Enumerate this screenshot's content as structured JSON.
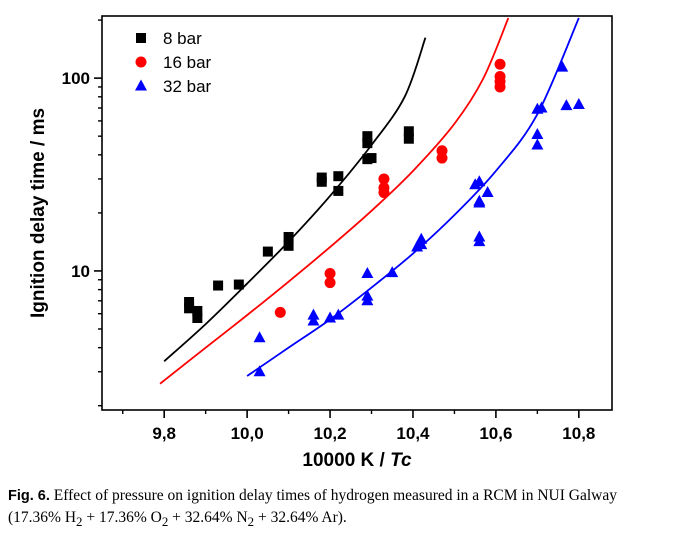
{
  "chart_data": {
    "type": "scatter",
    "xlabel": "10000 K / ",
    "xlabel_italic": "Tc",
    "ylabel": "Ignition delay time / ms",
    "xlim": [
      9.65,
      10.88
    ],
    "ylim": [
      1.9,
      210
    ],
    "y_scale": "log",
    "x_ticks": [
      9.8,
      10.0,
      10.2,
      10.4,
      10.6,
      10.8
    ],
    "x_tick_labels": [
      "9,8",
      "10,0",
      "10,2",
      "10,4",
      "10,6",
      "10,8"
    ],
    "y_ticks": [
      10,
      100
    ],
    "y_tick_labels": [
      "10",
      "100"
    ],
    "legend_position": "top-left",
    "series": [
      {
        "name": "8 bar",
        "color": "#000000",
        "marker": "square",
        "points": [
          [
            9.86,
            6.9
          ],
          [
            9.86,
            6.4
          ],
          [
            9.88,
            6.2
          ],
          [
            9.88,
            5.7
          ],
          [
            9.93,
            8.4
          ],
          [
            9.98,
            8.5
          ],
          [
            10.05,
            12.6
          ],
          [
            10.1,
            15.0
          ],
          [
            10.1,
            13.5
          ],
          [
            10.18,
            30.5
          ],
          [
            10.18,
            29.0
          ],
          [
            10.22,
            31.0
          ],
          [
            10.22,
            26.0
          ],
          [
            10.29,
            50.0
          ],
          [
            10.29,
            46.0
          ],
          [
            10.29,
            38.0
          ],
          [
            10.3,
            38.5
          ],
          [
            10.39,
            53.0
          ],
          [
            10.39,
            48.5
          ]
        ],
        "fit": [
          [
            9.8,
            3.4
          ],
          [
            9.9,
            5.3
          ],
          [
            10.0,
            8.6
          ],
          [
            10.1,
            14.2
          ],
          [
            10.2,
            24.5
          ],
          [
            10.3,
            45
          ],
          [
            10.38,
            80
          ],
          [
            10.43,
            162
          ]
        ]
      },
      {
        "name": "16 bar",
        "color": "#ff0000",
        "marker": "circle",
        "points": [
          [
            10.08,
            6.1
          ],
          [
            10.2,
            9.7
          ],
          [
            10.2,
            8.7
          ],
          [
            10.33,
            30.0
          ],
          [
            10.33,
            27.0
          ],
          [
            10.33,
            25.5
          ],
          [
            10.47,
            42.0
          ],
          [
            10.47,
            38.5
          ],
          [
            10.61,
            118
          ],
          [
            10.61,
            102
          ],
          [
            10.61,
            96
          ],
          [
            10.61,
            90
          ]
        ],
        "fit": [
          [
            9.79,
            2.6
          ],
          [
            9.9,
            4.0
          ],
          [
            10.0,
            5.9
          ],
          [
            10.1,
            8.8
          ],
          [
            10.2,
            13.3
          ],
          [
            10.3,
            20.5
          ],
          [
            10.4,
            33
          ],
          [
            10.5,
            58
          ],
          [
            10.57,
            100
          ],
          [
            10.63,
            205
          ]
        ]
      },
      {
        "name": "32 bar",
        "color": "#0000ff",
        "marker": "triangle",
        "points": [
          [
            10.03,
            4.5
          ],
          [
            10.03,
            3.0
          ],
          [
            10.16,
            5.9
          ],
          [
            10.16,
            5.5
          ],
          [
            10.2,
            5.7
          ],
          [
            10.22,
            5.9
          ],
          [
            10.29,
            9.7
          ],
          [
            10.29,
            7.4
          ],
          [
            10.29,
            7.0
          ],
          [
            10.35,
            9.8
          ],
          [
            10.41,
            13.3
          ],
          [
            10.42,
            14.6
          ],
          [
            10.42,
            13.7
          ],
          [
            10.55,
            28.0
          ],
          [
            10.56,
            29.0
          ],
          [
            10.56,
            23.0
          ],
          [
            10.56,
            22.5
          ],
          [
            10.56,
            15.0
          ],
          [
            10.56,
            14.2
          ],
          [
            10.58,
            25.5
          ],
          [
            10.7,
            69
          ],
          [
            10.7,
            51
          ],
          [
            10.7,
            45
          ],
          [
            10.71,
            70
          ],
          [
            10.76,
            114
          ],
          [
            10.77,
            72
          ],
          [
            10.8,
            73
          ]
        ],
        "fit": [
          [
            10.0,
            2.85
          ],
          [
            10.1,
            4.0
          ],
          [
            10.2,
            5.6
          ],
          [
            10.3,
            8.2
          ],
          [
            10.4,
            12.3
          ],
          [
            10.5,
            19.5
          ],
          [
            10.6,
            33
          ],
          [
            10.7,
            65
          ],
          [
            10.8,
            205
          ]
        ]
      }
    ]
  },
  "caption": {
    "label": "Fig. 6.",
    "text": "Effect of pressure on ignition delay times of hydrogen measured in a RCM in NUI Galway (17.36% H",
    "h2_sub": "2",
    "mid1": " + 17.36% O",
    "o2_sub": "2",
    "mid2": " + 32.64% N",
    "n2_sub": "2",
    "end": " + 32.64% Ar)."
  }
}
